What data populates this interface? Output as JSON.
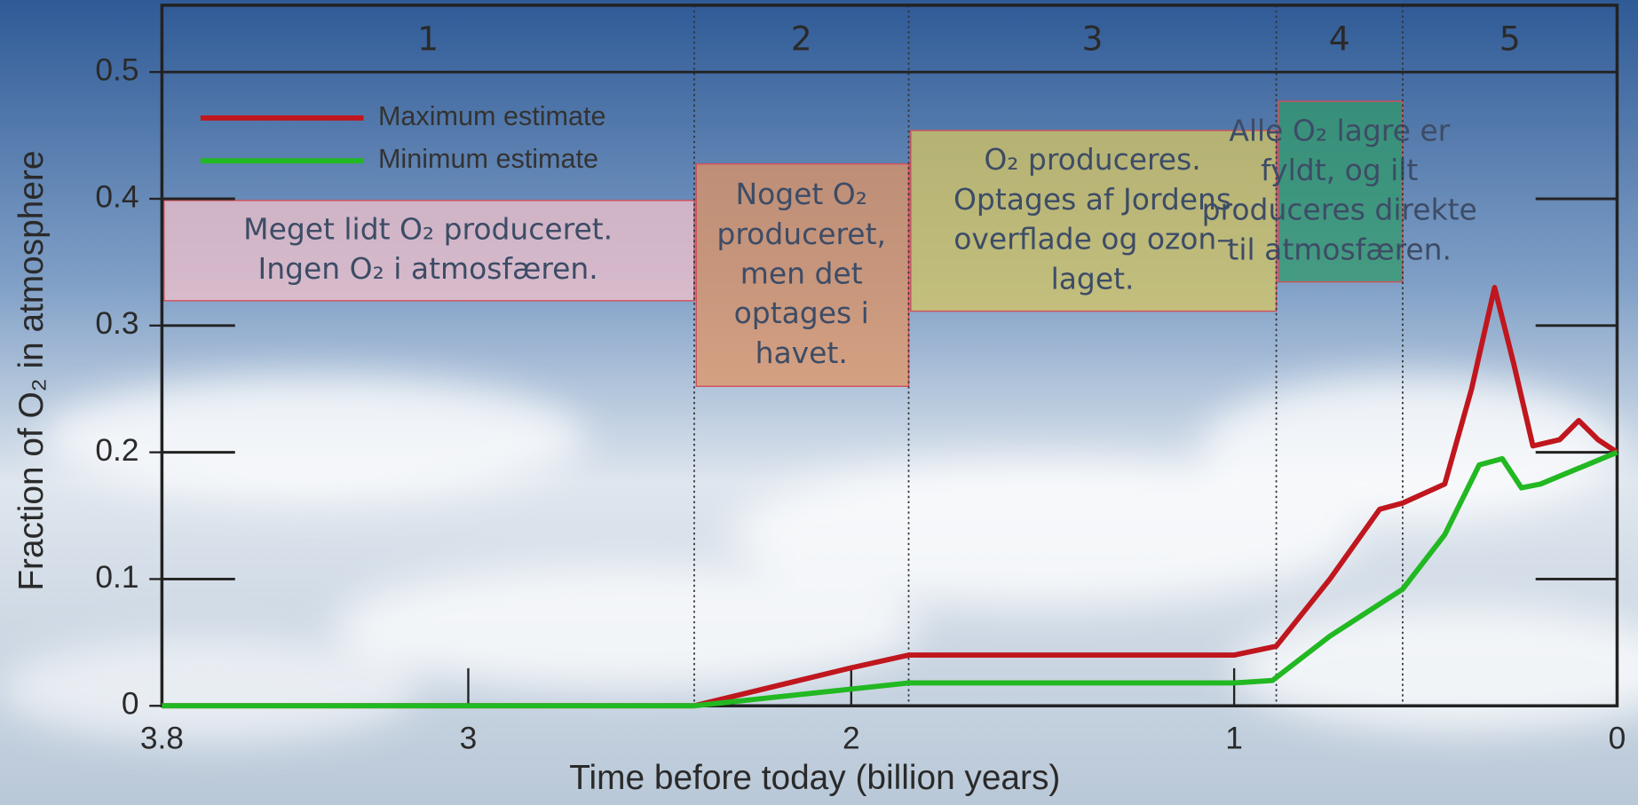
{
  "chart_data": {
    "type": "line",
    "xlabel": "Time before today (billion years)",
    "ylabel": "Fraction of O₂ in atmosphere",
    "xlim": [
      3.8,
      0
    ],
    "ylim": [
      0,
      0.5
    ],
    "xticks": [
      3.8,
      3,
      2,
      1,
      0
    ],
    "yticks": [
      0,
      0.1,
      0.2,
      0.3,
      0.4,
      0.5
    ],
    "legend": "upper left",
    "stages": [
      {
        "label": "1",
        "start": 3.8,
        "end": 2.41,
        "color": "#f7c3cc",
        "text": [
          "Meget lidt O₂ produceret.",
          "Ingen O₂ i atmosfæren."
        ]
      },
      {
        "label": "2",
        "start": 2.41,
        "end": 1.85,
        "color": "#e39360",
        "text": [
          "Noget O₂",
          "produceret,",
          "men det",
          "optages i",
          "havet."
        ]
      },
      {
        "label": "3",
        "start": 1.85,
        "end": 0.89,
        "color": "#d9c75e",
        "text": [
          "O₂ produceres.",
          "Optages af Jordens",
          "overflade og ozon–",
          "laget."
        ]
      },
      {
        "label": "4",
        "start": 0.89,
        "end": 0.56,
        "color": "#2f9a68",
        "text": [
          "Alle O₂ lagre er",
          "fyldt, og ilt",
          "produceres direkte",
          "til atmosfæren."
        ]
      },
      {
        "label": "5",
        "start": 0.56,
        "end": 0
      }
    ],
    "series": [
      {
        "name": "Maximum estimate",
        "color": "#c0161e",
        "x": [
          3.8,
          2.41,
          2.0,
          1.85,
          1.0,
          0.89,
          0.75,
          0.62,
          0.56,
          0.45,
          0.38,
          0.32,
          0.27,
          0.22,
          0.15,
          0.1,
          0.05,
          0
        ],
        "values": [
          0,
          0,
          0.03,
          0.04,
          0.04,
          0.047,
          0.1,
          0.155,
          0.16,
          0.175,
          0.25,
          0.33,
          0.27,
          0.205,
          0.21,
          0.225,
          0.21,
          0.2
        ]
      },
      {
        "name": "Minimum estimate",
        "color": "#22b822",
        "x": [
          3.8,
          2.41,
          1.85,
          1.0,
          0.9,
          0.75,
          0.56,
          0.45,
          0.36,
          0.3,
          0.25,
          0.2,
          0
        ],
        "values": [
          0,
          0,
          0.018,
          0.018,
          0.02,
          0.055,
          0.092,
          0.135,
          0.19,
          0.195,
          0.172,
          0.175,
          0.2
        ]
      }
    ]
  }
}
